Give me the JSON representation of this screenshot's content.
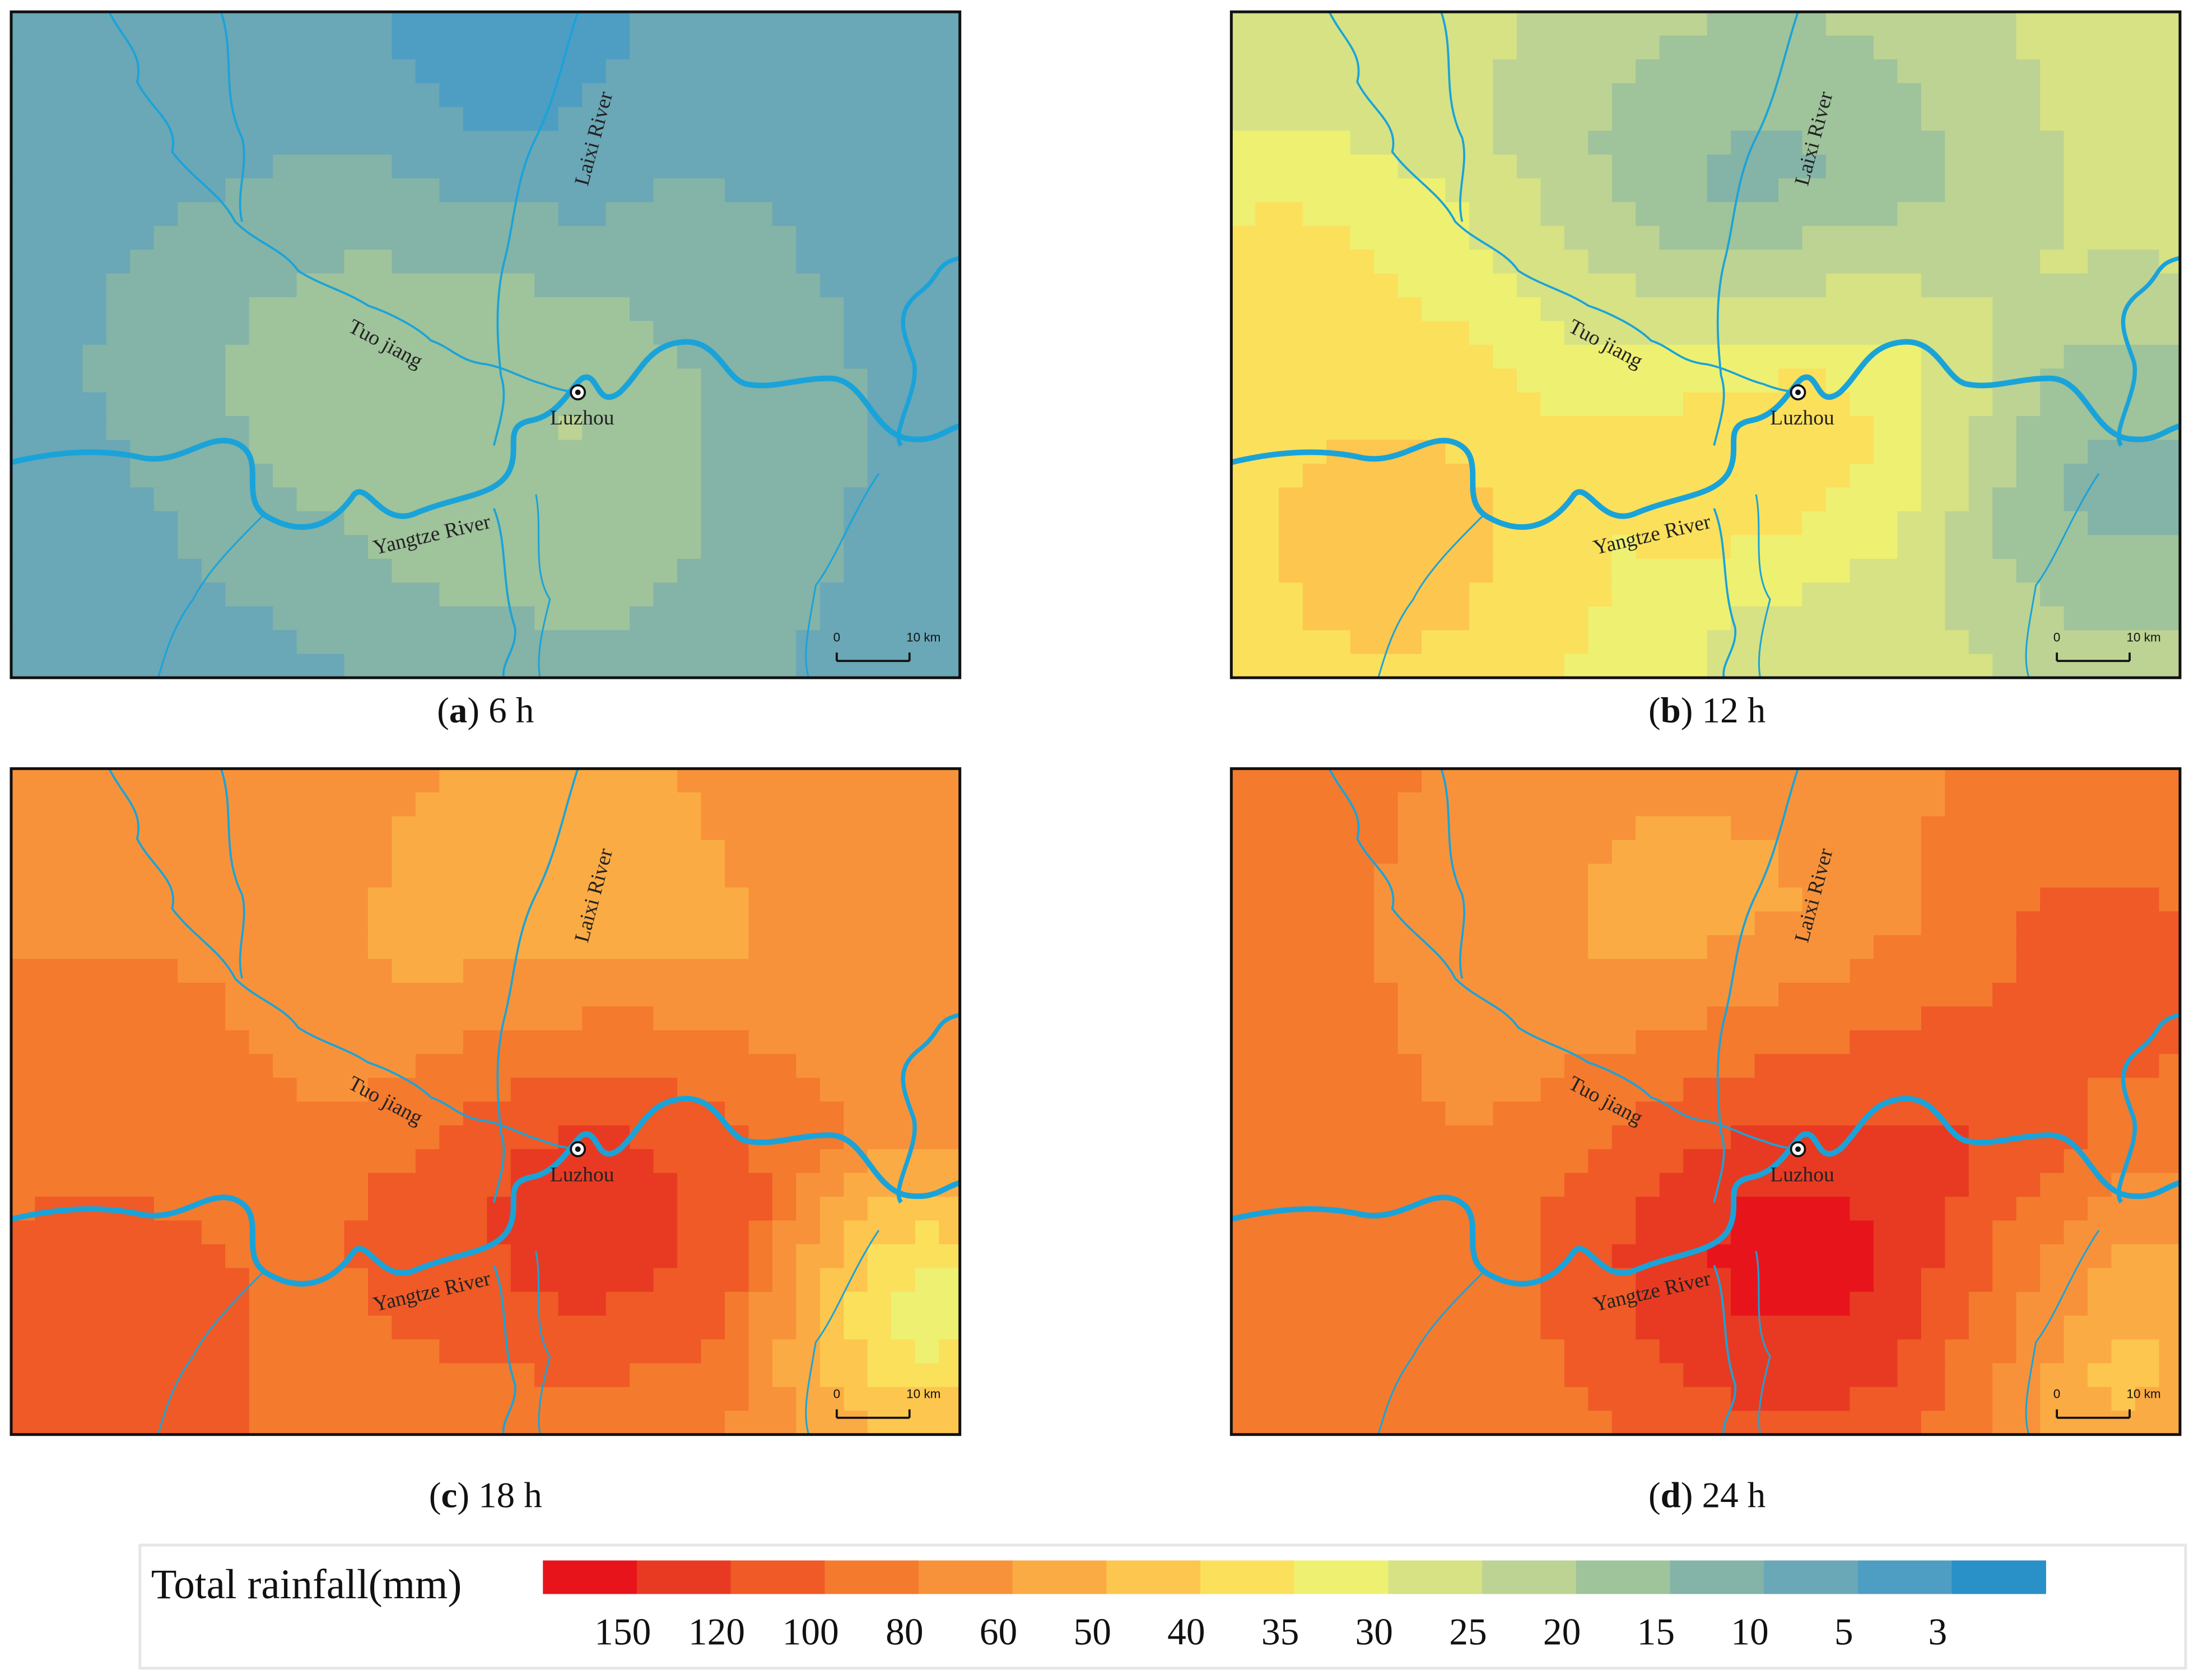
{
  "panels": [
    {
      "open": "(",
      "letter": "a",
      "rest": ") 6 h"
    },
    {
      "open": "(",
      "letter": "b",
      "rest": ") 12 h"
    },
    {
      "open": "(",
      "letter": "c",
      "rest": ") 18 h"
    },
    {
      "open": "(",
      "letter": "d",
      "rest": ") 24 h"
    }
  ],
  "map_labels": {
    "laixi": "Laixi River",
    "tuo": "Tuo jiang",
    "city": "Luzhou",
    "yangtze": "Yangtze River"
  },
  "scale_bar": {
    "start": "0",
    "end": "10 km"
  },
  "legend": {
    "title": "Total rainfall(mm)",
    "colors": [
      "#e8141c",
      "#e83a22",
      "#ef5a26",
      "#f47a2e",
      "#f8923a",
      "#fbab44",
      "#fdc64e",
      "#fbe05c",
      "#eef072",
      "#d6e284",
      "#bdd393",
      "#9fc39b",
      "#84b3a8",
      "#6aa7b7",
      "#4e9dc3",
      "#2a90c8"
    ],
    "labels": [
      150,
      120,
      100,
      80,
      60,
      50,
      40,
      35,
      30,
      25,
      20,
      15,
      10,
      5,
      3
    ]
  }
}
